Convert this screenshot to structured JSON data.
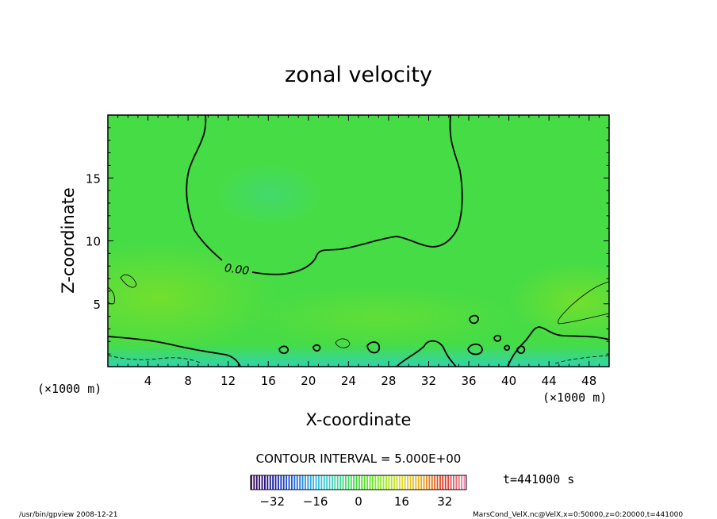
{
  "chart_data": {
    "type": "heatmap",
    "title": "zonal velocity",
    "xlabel": "X-coordinate",
    "ylabel": "Z-coordinate",
    "x_unit": "(×1000 m)",
    "y_unit": "(×1000 m)",
    "xlim": [
      0,
      50
    ],
    "ylim": [
      0,
      20
    ],
    "x_ticks": [
      4,
      8,
      12,
      16,
      20,
      24,
      28,
      32,
      36,
      40,
      44,
      48
    ],
    "y_ticks": [
      5,
      10,
      15
    ],
    "contour_label": "0.00",
    "contour_interval": "CONTOUR INTERVAL = 5.000E+00",
    "time_label": "t=441000 s",
    "colorbar": {
      "min": -40,
      "max": 40,
      "ticks": [
        -32,
        -16,
        0,
        16,
        32
      ],
      "colors": [
        "#3a0050",
        "#1a1a9a",
        "#2266dd",
        "#33bbee",
        "#44ddaa",
        "#44dd33",
        "#88ee22",
        "#dddd22",
        "#eeaa22",
        "#dd3322",
        "#ee88aa"
      ]
    },
    "field_colors": {
      "base": "#46dc46",
      "positive": "#6ae232",
      "negative": "#36d6a0",
      "contour": "#000000"
    }
  },
  "footer": {
    "left": "/usr/bin/gpview   2008-12-21",
    "right": "MarsCond_VelX.nc@VelX,x=0:50000,z=0:20000,t=441000"
  }
}
